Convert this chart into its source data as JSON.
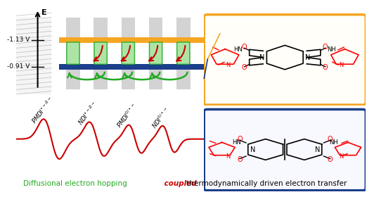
{
  "background_color": "#ffffff",
  "orange_color": "#F5A623",
  "blue_color": "#1B3F8B",
  "green_color": "#22AA22",
  "red_color": "#CC0000",
  "gray_col_color": "#B0B0B0",
  "connector_color": "#A8E6A0",
  "connector_edge": "#22AA22",
  "wave_color": "#CC0000",
  "voltage1_text": "-1.13 V",
  "voltage2_text": "-0.91 V",
  "pmdi_box_color": "#F5A623",
  "ndi_box_color": "#1B3F8B",
  "bottom_green": "Diffusional electron hopping",
  "bottom_red_italic": " coupled",
  "bottom_black": " thermodynamically driven electron transfer"
}
